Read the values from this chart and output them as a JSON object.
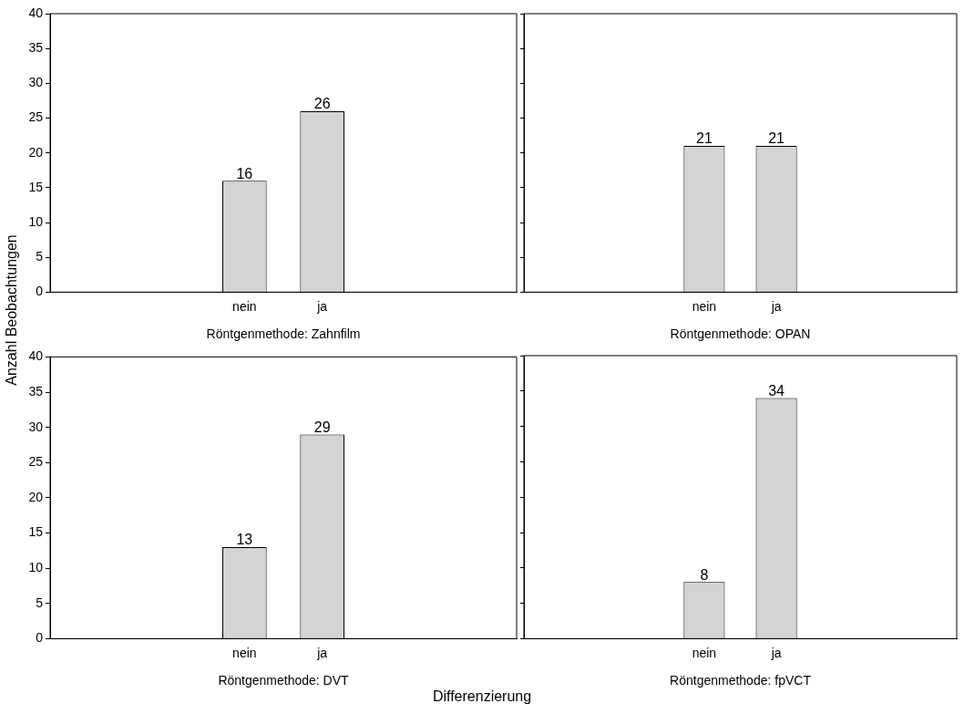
{
  "chart_data": [
    {
      "type": "bar",
      "categories": [
        "nein",
        "ja"
      ],
      "values": [
        16,
        26
      ],
      "color": "#d4d4d4",
      "xlabel": "Röntgenmethode: Zahnfilm",
      "ylabel": "Anzahl Beobachtungen",
      "ylim": [
        0,
        40
      ],
      "yticks": [
        0,
        5,
        10,
        15,
        20,
        25,
        30,
        35,
        40
      ],
      "data_labels": true,
      "grid": false,
      "legend": false
    },
    {
      "type": "bar",
      "categories": [
        "nein",
        "ja"
      ],
      "values": [
        21,
        21
      ],
      "color": "#d4d4d4",
      "xlabel": "Röntgenmethode: OPAN",
      "ylim": [
        0,
        40
      ],
      "yticks": [
        0,
        5,
        10,
        15,
        20,
        25,
        30,
        35,
        40
      ],
      "data_labels": true,
      "grid": false,
      "legend": false,
      "tick_labels": "x"
    },
    {
      "type": "bar",
      "categories": [
        "nein",
        "ja"
      ],
      "values": [
        13,
        29
      ],
      "color": "#d4d4d4",
      "xlabel": "Röntgenmethode: DVT",
      "ylim": [
        0,
        40
      ],
      "yticks": [
        0,
        5,
        10,
        15,
        20,
        25,
        30,
        35,
        40
      ],
      "data_labels": true,
      "grid": false,
      "legend": false,
      "annotations": [
        "Differenzierung"
      ]
    },
    {
      "type": "bar",
      "categories": [
        "nein",
        "ja"
      ],
      "values": [
        8,
        34
      ],
      "color": "#d4d4d4",
      "xlabel": "Röntgenmethode: fpVCT",
      "ylim": [
        0,
        40
      ],
      "yticks": [
        0,
        5,
        10,
        15,
        20,
        25,
        30,
        35,
        40
      ],
      "data_labels": true,
      "grid": false,
      "legend": false,
      "tick_labels": "x"
    }
  ]
}
